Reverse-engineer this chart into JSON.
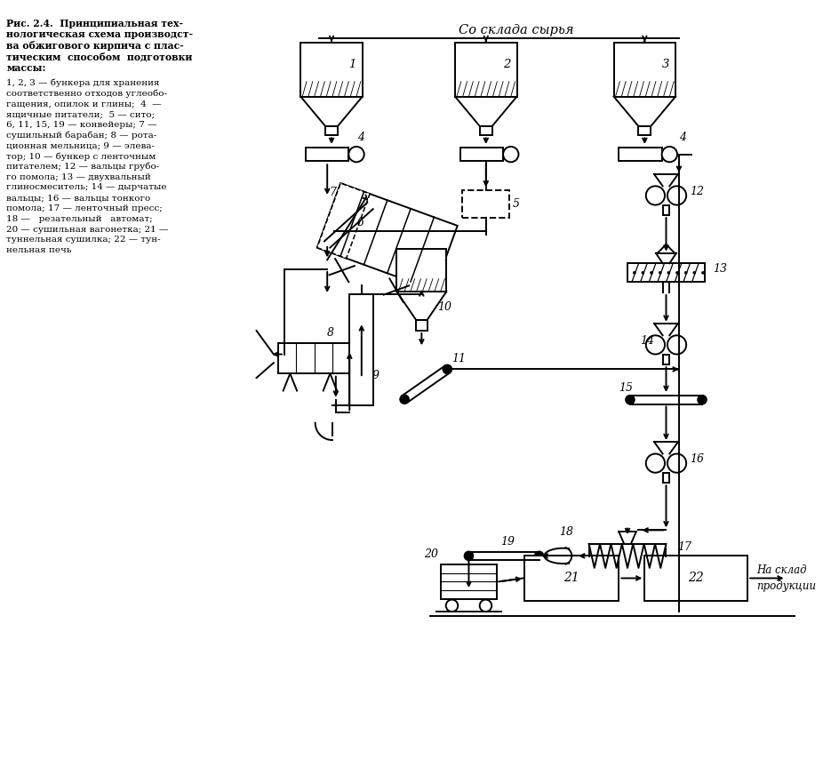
{
  "bg_color": "#ffffff",
  "line_color": "#000000",
  "caption_bold_lines": [
    "Рис. 2.4.  Принципиальная тех-",
    "нологическая схема производст-",
    "ва обжигового кирпича с плас-",
    "тическим  способом  подготовки",
    "массы:"
  ],
  "caption_normal_lines": [
    "1, 2, 3 — бункера для хранения",
    "соответственно отходов углеобо-",
    "гащения, опилок и глины;  4  —",
    "ящичные питатели;  5 — сито;",
    "6, 11, 15, 19 — конвейеры; 7 —",
    "сушильный барабан; 8 — рота-",
    "ционная мельница; 9 — элева-",
    "тор; 10 — бункер с ленточным",
    "питателем; 12 — вальцы грубо-",
    "го помола; 13 — двухвальный",
    "глиносмеситель; 14 — дырчатые",
    "вальцы; 16 — вальцы тонкого",
    "помола; 17 — ленточный пресс;",
    "18 —   резательный   автомат;",
    "20 — сушильная вагонетка; 21 —",
    "туннельная сушилка; 22 — тун-",
    "нельная печь"
  ]
}
